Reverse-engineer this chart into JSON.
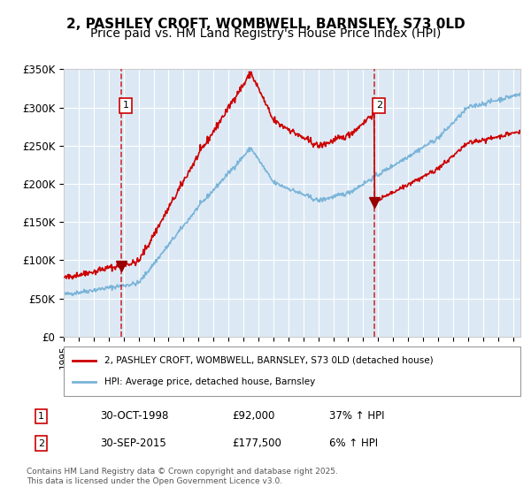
{
  "title_line1": "2, PASHLEY CROFT, WOMBWELL, BARNSLEY, S73 0LD",
  "title_line2": "Price paid vs. HM Land Registry's House Price Index (HPI)",
  "ylabel": "",
  "ylim": [
    0,
    350000
  ],
  "yticks": [
    0,
    50000,
    100000,
    150000,
    200000,
    250000,
    300000,
    350000
  ],
  "ytick_labels": [
    "£0",
    "£50K",
    "£100K",
    "£150K",
    "£200K",
    "£250K",
    "£300K",
    "£350K"
  ],
  "xlim_start": 1995.0,
  "xlim_end": 2025.5,
  "background_color": "#dce9f5",
  "plot_bg_color": "#dce9f5",
  "fig_bg_color": "#ffffff",
  "red_line_color": "#cc0000",
  "blue_line_color": "#7ab4d8",
  "marker1_x": 1998.83,
  "marker2_x": 2015.75,
  "marker1_price": 92000,
  "marker2_price": 177500,
  "legend_label_red": "2, PASHLEY CROFT, WOMBWELL, BARNSLEY, S73 0LD (detached house)",
  "legend_label_blue": "HPI: Average price, detached house, Barnsley",
  "transaction1_label": "1",
  "transaction1_date": "30-OCT-1998",
  "transaction1_price": "£92,000",
  "transaction1_hpi": "37% ↑ HPI",
  "transaction2_label": "2",
  "transaction2_date": "30-SEP-2015",
  "transaction2_price": "£177,500",
  "transaction2_hpi": "6% ↑ HPI",
  "footer_text": "Contains HM Land Registry data © Crown copyright and database right 2025.\nThis data is licensed under the Open Government Licence v3.0.",
  "grid_color": "#ffffff",
  "title_fontsize": 11,
  "subtitle_fontsize": 10
}
